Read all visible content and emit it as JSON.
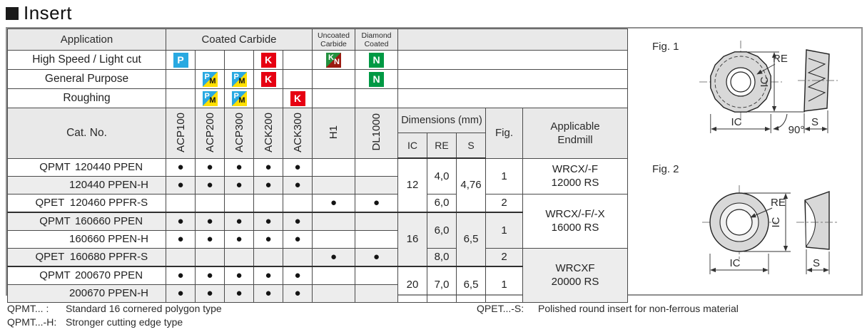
{
  "title": "Insert",
  "table": {
    "application_header": "Application",
    "coated_header": "Coated Carbide",
    "uncoated_header_line1": "Uncoated",
    "uncoated_header_line2": "Carbide",
    "diamond_header_line1": "Diamond",
    "diamond_header_line2": "Coated",
    "cat_no_header": "Cat. No.",
    "grade_columns": [
      "ACP100",
      "ACP200",
      "ACP300",
      "ACK200",
      "ACK300",
      "H1",
      "DL1000"
    ],
    "dimensions_header": "Dimensions (mm)",
    "dim_subcolumns": [
      "IC",
      "RE",
      "S"
    ],
    "fig_header": "Fig.",
    "endmill_header_line1": "Applicable",
    "endmill_header_line2": "Endmill",
    "mark_symbol": "●",
    "application_rows": [
      {
        "label": "High Speed / Light cut",
        "marks": [
          "P",
          "",
          "",
          "K",
          "",
          "KN",
          "N"
        ]
      },
      {
        "label": "General Purpose",
        "marks": [
          "",
          "PM",
          "PM",
          "K",
          "",
          "",
          "N"
        ]
      },
      {
        "label": "Roughing",
        "marks": [
          "",
          "PM",
          "PM",
          "",
          "K",
          "",
          ""
        ]
      }
    ],
    "rows": [
      {
        "prefix": "QPMT",
        "name": "120440 PPEN",
        "marks": [
          1,
          1,
          1,
          1,
          1,
          0,
          0
        ],
        "extra": [
          {
            "col": "ic",
            "span": 3,
            "lines": [
              "12"
            ]
          },
          {
            "col": "re",
            "span": 2,
            "lines": [
              "4,0"
            ]
          },
          {
            "col": "s",
            "span": 3,
            "lines": [
              "4,76"
            ]
          },
          {
            "col": "fig",
            "span": 2,
            "lines": [
              "1"
            ]
          },
          {
            "col": "endmill",
            "span": 2,
            "lines": [
              "WRCX/-F",
              "12000 RS"
            ]
          }
        ]
      },
      {
        "prefix": "",
        "name": "120440 PPEN-H",
        "marks": [
          1,
          1,
          1,
          1,
          1,
          0,
          0
        ],
        "extra": []
      },
      {
        "prefix": "QPET",
        "name": "120460 PPFR-S",
        "marks": [
          0,
          0,
          0,
          0,
          0,
          1,
          1
        ],
        "extra": [
          {
            "col": "re",
            "span": 1,
            "lines": [
              "6,0"
            ]
          },
          {
            "col": "fig",
            "span": 1,
            "lines": [
              "2"
            ]
          },
          {
            "col": "endmill",
            "span": 3,
            "lines": [
              "WRCX/-F/-X",
              "16000 RS"
            ]
          }
        ]
      },
      {
        "prefix": "QPMT",
        "name": "160660 PPEN",
        "marks": [
          1,
          1,
          1,
          1,
          1,
          0,
          0
        ],
        "extra": [
          {
            "col": "ic",
            "span": 3,
            "lines": [
              "16"
            ]
          },
          {
            "col": "re",
            "span": 2,
            "lines": [
              "6,0"
            ]
          },
          {
            "col": "s",
            "span": 3,
            "lines": [
              "6,5"
            ]
          },
          {
            "col": "fig",
            "span": 2,
            "lines": [
              "1"
            ]
          }
        ]
      },
      {
        "prefix": "",
        "name": "160660 PPEN-H",
        "marks": [
          1,
          1,
          1,
          1,
          1,
          0,
          0
        ],
        "extra": []
      },
      {
        "prefix": "QPET",
        "name": "160680 PPFR-S",
        "marks": [
          0,
          0,
          0,
          0,
          0,
          1,
          1
        ],
        "extra": [
          {
            "col": "re",
            "span": 1,
            "lines": [
              "8,0"
            ]
          },
          {
            "col": "fig",
            "span": 1,
            "lines": [
              "2"
            ]
          },
          {
            "col": "endmill",
            "span": 3,
            "lines": [
              "WRCXF",
              "20000 RS"
            ]
          }
        ]
      },
      {
        "prefix": "QPMT",
        "name": "200670 PPEN",
        "marks": [
          1,
          1,
          1,
          1,
          1,
          0,
          0
        ],
        "extra": [
          {
            "col": "ic",
            "span": 2,
            "lines": [
              "20"
            ]
          },
          {
            "col": "re",
            "span": 2,
            "lines": [
              "7,0"
            ]
          },
          {
            "col": "s",
            "span": 2,
            "lines": [
              "6,5"
            ]
          },
          {
            "col": "fig",
            "span": 2,
            "lines": [
              "1"
            ]
          }
        ]
      },
      {
        "prefix": "",
        "name": "200670 PPEN-H",
        "marks": [
          1,
          1,
          1,
          1,
          1,
          0,
          0
        ],
        "extra": []
      }
    ],
    "group_start_rows": [
      3,
      6
    ]
  },
  "icons": {
    "P": {
      "name": "p-steel-icon",
      "t": "P",
      "bg": "#29a9e1",
      "fg": "#ffffff"
    },
    "K": {
      "name": "k-cast-iron-icon",
      "t": "K",
      "bg": "#e60012",
      "fg": "#ffffff"
    },
    "N": {
      "name": "n-non-ferrous-icon",
      "t": "N",
      "bg": "#009944",
      "fg": "#ffffff"
    },
    "PM": {
      "name": "pm-steel-stainless-icon",
      "split": true,
      "t1": "P",
      "t2": "M",
      "c1": "#29a9e1",
      "c2": "#ffdf00",
      "f1": "#ffffff",
      "f2": "#111111"
    },
    "KN": {
      "name": "kn-cast-iron-non-ferrous-icon",
      "split": true,
      "t1": "K",
      "t2": "N",
      "c1": "#23913f",
      "c2": "#9c1a10",
      "f1": "#ffffff",
      "f2": "#ffffff"
    }
  },
  "figures": {
    "fig1": {
      "label": "Fig. 1",
      "re": "RE",
      "ic_side": "IC",
      "ic_bottom": "IC",
      "angle": "90°",
      "s": "S"
    },
    "fig2": {
      "label": "Fig. 2",
      "re": "RE",
      "ic_side": "IC",
      "ic_bottom": "IC",
      "s": "S"
    }
  },
  "footnotes": [
    {
      "term": "QPMT... :",
      "desc": "Standard 16 cornered polygon type"
    },
    {
      "term": "QPMT...-H:",
      "desc": "Stronger cutting edge type"
    },
    {
      "term": "QPET...-S:",
      "desc": "Polished round insert for non-ferrous material"
    }
  ]
}
